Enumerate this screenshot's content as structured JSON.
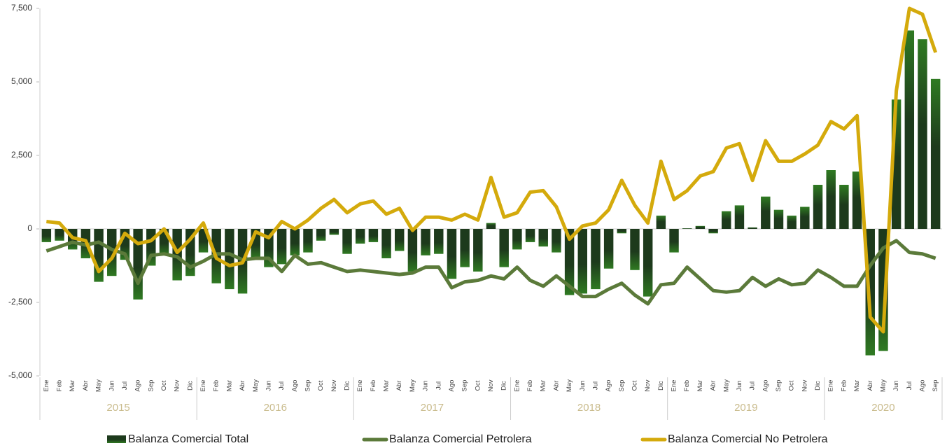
{
  "chart_data": {
    "type": "bar_line",
    "categories": [
      "Ene",
      "Feb",
      "Mar",
      "Abr",
      "May",
      "Jun",
      "Jul",
      "Ago",
      "Sep",
      "Oct",
      "Nov",
      "Dic",
      "Ene",
      "Feb",
      "Mar",
      "Abr",
      "May",
      "Jun",
      "Jul",
      "Ago",
      "Sep",
      "Oct",
      "Nov",
      "Dic",
      "Ene",
      "Feb",
      "Mar",
      "Abr",
      "May",
      "Jun",
      "Jul",
      "Ago",
      "Sep",
      "Oct",
      "Nov",
      "Dic",
      "Ene",
      "Feb",
      "Mar",
      "Abr",
      "May",
      "Jun",
      "Jul",
      "Ago",
      "Sep",
      "Oct",
      "Nov",
      "Dic",
      "Ene",
      "Feb",
      "Mar",
      "Abr",
      "May",
      "Jun",
      "Jul",
      "Ago",
      "Sep",
      "Oct",
      "Nov",
      "Dic",
      "Ene",
      "Feb",
      "Mar",
      "Abr",
      "May",
      "Jun",
      "Jul",
      "Ago",
      "Sep"
    ],
    "years": [
      "2015",
      "2016",
      "2017",
      "2018",
      "2019",
      "2020"
    ],
    "series": [
      {
        "name": "Balanza Comercial Total",
        "type": "bar",
        "color": "#1d3a1c",
        "values": [
          -450,
          -400,
          -700,
          -1000,
          -1800,
          -1600,
          -1050,
          -2400,
          -1250,
          -900,
          -1750,
          -1600,
          -800,
          -1850,
          -2050,
          -2200,
          -1000,
          -1300,
          -1200,
          -900,
          -800,
          -400,
          -200,
          -850,
          -500,
          -450,
          -1000,
          -750,
          -1450,
          -900,
          -850,
          -1700,
          -1300,
          -1450,
          200,
          -1300,
          -700,
          -450,
          -600,
          -800,
          -2250,
          -2200,
          -2050,
          -1350,
          -150,
          -1400,
          -2300,
          450,
          -800,
          20,
          100,
          -150,
          600,
          800,
          50,
          1100,
          650,
          450,
          750,
          1500,
          2000,
          1500,
          1950,
          -4300,
          -4150,
          4400,
          6750,
          6450,
          5100
        ]
      },
      {
        "name": "Balanza Comercial Petrolera",
        "type": "line",
        "color": "#5b7a3a",
        "values": [
          -750,
          -600,
          -450,
          -550,
          -450,
          -700,
          -850,
          -1850,
          -900,
          -850,
          -950,
          -1300,
          -1100,
          -850,
          -850,
          -1050,
          -1000,
          -1000,
          -1450,
          -900,
          -1200,
          -1150,
          -1300,
          -1450,
          -1400,
          -1450,
          -1500,
          -1550,
          -1500,
          -1300,
          -1300,
          -2000,
          -1800,
          -1750,
          -1600,
          -1700,
          -1300,
          -1750,
          -1950,
          -1600,
          -1950,
          -2300,
          -2300,
          -2050,
          -1850,
          -2250,
          -2550,
          -1900,
          -1850,
          -1300,
          -1700,
          -2100,
          -2150,
          -2100,
          -1650,
          -1950,
          -1700,
          -1900,
          -1850,
          -1400,
          -1650,
          -1950,
          -1950,
          -1250,
          -650,
          -400,
          -800,
          -850,
          -1000
        ]
      },
      {
        "name": "Balanza Comercial No Petrolera",
        "type": "line",
        "color": "#d4aa0c",
        "values": [
          250,
          200,
          -300,
          -400,
          -1450,
          -1000,
          -150,
          -500,
          -400,
          0,
          -800,
          -350,
          200,
          -1000,
          -1250,
          -1150,
          -100,
          -300,
          250,
          0,
          300,
          700,
          1000,
          550,
          850,
          950,
          500,
          700,
          -50,
          400,
          400,
          300,
          500,
          300,
          1750,
          400,
          550,
          1250,
          1300,
          750,
          -350,
          100,
          200,
          650,
          1650,
          800,
          200,
          2300,
          1000,
          1300,
          1800,
          1950,
          2750,
          2900,
          1650,
          3000,
          2300,
          2300,
          2550,
          2850,
          3650,
          3400,
          3850,
          -3000,
          -3500,
          4700,
          7500,
          7300,
          6000
        ]
      }
    ],
    "ylim": [
      -5000,
      7500
    ],
    "yticks": [
      {
        "value": -5000,
        "label": "-5,000"
      },
      {
        "value": -2500,
        "label": "-2,500"
      },
      0,
      {
        "value": 2500,
        "label": "2,500"
      },
      {
        "value": 5000,
        "label": "5,000"
      },
      {
        "value": 7500,
        "label": "7,500"
      }
    ]
  }
}
